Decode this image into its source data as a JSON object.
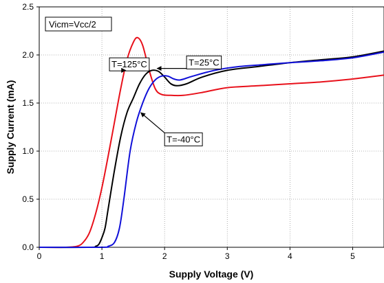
{
  "chart_data": {
    "type": "line",
    "title": "",
    "xlabel": "Supply Voltage (V)",
    "ylabel": "Supply Current (mA)",
    "xlim": [
      0,
      5.5
    ],
    "ylim": [
      0,
      2.5
    ],
    "xticks": [
      0,
      1,
      2,
      3,
      4,
      5
    ],
    "yticks": [
      0.0,
      0.5,
      1.0,
      1.5,
      2.0,
      2.5
    ],
    "xtick_labels": [
      "0",
      "1",
      "2",
      "3",
      "4",
      "5"
    ],
    "ytick_labels": [
      "0.0",
      "0.5",
      "1.0",
      "1.5",
      "2.0",
      "2.5"
    ],
    "grid": true,
    "condition_label": "Vicm=Vcc/2",
    "series": [
      {
        "name": "T=125°C",
        "color": "#e8101a",
        "points": [
          [
            0,
            0
          ],
          [
            0.4,
            0
          ],
          [
            0.6,
            0.01
          ],
          [
            0.7,
            0.05
          ],
          [
            0.8,
            0.15
          ],
          [
            0.9,
            0.35
          ],
          [
            1.0,
            0.62
          ],
          [
            1.1,
            0.95
          ],
          [
            1.2,
            1.3
          ],
          [
            1.3,
            1.65
          ],
          [
            1.4,
            1.95
          ],
          [
            1.5,
            2.13
          ],
          [
            1.57,
            2.18
          ],
          [
            1.65,
            2.1
          ],
          [
            1.75,
            1.85
          ],
          [
            1.85,
            1.65
          ],
          [
            1.95,
            1.59
          ],
          [
            2.1,
            1.58
          ],
          [
            2.3,
            1.58
          ],
          [
            2.6,
            1.61
          ],
          [
            3.0,
            1.66
          ],
          [
            3.5,
            1.68
          ],
          [
            4.0,
            1.7
          ],
          [
            4.5,
            1.72
          ],
          [
            5.0,
            1.75
          ],
          [
            5.5,
            1.79
          ]
        ]
      },
      {
        "name": "T=25°C",
        "color": "#000000",
        "points": [
          [
            0,
            0
          ],
          [
            0.8,
            0
          ],
          [
            0.9,
            0.01
          ],
          [
            0.95,
            0.03
          ],
          [
            1.0,
            0.1
          ],
          [
            1.05,
            0.2
          ],
          [
            1.1,
            0.4
          ],
          [
            1.2,
            0.8
          ],
          [
            1.3,
            1.15
          ],
          [
            1.4,
            1.4
          ],
          [
            1.5,
            1.55
          ],
          [
            1.6,
            1.7
          ],
          [
            1.7,
            1.8
          ],
          [
            1.8,
            1.84
          ],
          [
            1.9,
            1.83
          ],
          [
            2.0,
            1.77
          ],
          [
            2.1,
            1.7
          ],
          [
            2.2,
            1.68
          ],
          [
            2.35,
            1.7
          ],
          [
            2.6,
            1.77
          ],
          [
            3.0,
            1.84
          ],
          [
            3.5,
            1.88
          ],
          [
            4.0,
            1.92
          ],
          [
            4.5,
            1.95
          ],
          [
            5.0,
            1.98
          ],
          [
            5.5,
            2.04
          ]
        ]
      },
      {
        "name": "T=-40°C",
        "color": "#1010d8",
        "points": [
          [
            0,
            0
          ],
          [
            1.0,
            0
          ],
          [
            1.1,
            0.01
          ],
          [
            1.2,
            0.05
          ],
          [
            1.28,
            0.2
          ],
          [
            1.35,
            0.5
          ],
          [
            1.45,
            1.0
          ],
          [
            1.55,
            1.3
          ],
          [
            1.65,
            1.5
          ],
          [
            1.75,
            1.65
          ],
          [
            1.85,
            1.74
          ],
          [
            1.95,
            1.78
          ],
          [
            2.05,
            1.78
          ],
          [
            2.15,
            1.75
          ],
          [
            2.25,
            1.74
          ],
          [
            2.45,
            1.78
          ],
          [
            2.8,
            1.84
          ],
          [
            3.2,
            1.88
          ],
          [
            3.6,
            1.9
          ],
          [
            4.0,
            1.92
          ],
          [
            4.5,
            1.94
          ],
          [
            5.0,
            1.97
          ],
          [
            5.5,
            2.03
          ]
        ]
      }
    ],
    "annotations": [
      {
        "text": "T=125°C",
        "box_at": [
          1.12,
          1.97
        ],
        "arrow_to": [
          1.38,
          1.84
        ]
      },
      {
        "text": "T=25°C",
        "box_at": [
          2.35,
          1.99
        ],
        "arrow_to": [
          1.88,
          1.86
        ]
      },
      {
        "text": "T=-40°C",
        "box_at": [
          2.0,
          1.19
        ],
        "arrow_to": [
          1.62,
          1.4
        ]
      }
    ]
  }
}
